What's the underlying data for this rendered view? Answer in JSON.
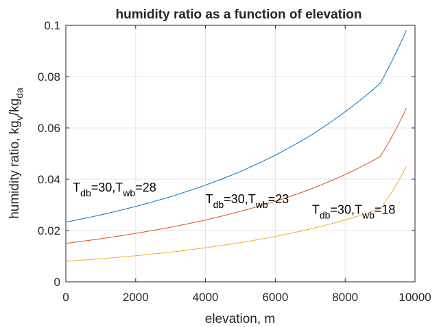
{
  "chart_data": {
    "type": "line",
    "title": "humidity ratio as a function of elevation",
    "xlabel": "elevation, m",
    "ylabel": {
      "main": "humidity ratio, kg",
      "sub1": "v",
      "mid": "/kg",
      "sub2": "da"
    },
    "xlim": [
      0,
      10000
    ],
    "ylim": [
      0,
      0.1
    ],
    "xticks": [
      0,
      2000,
      4000,
      6000,
      8000,
      10000
    ],
    "xtick_labels": [
      "0",
      "2000",
      "4000",
      "6000",
      "8000",
      "10000"
    ],
    "yticks": [
      0,
      0.02,
      0.04,
      0.06,
      0.08,
      0.1
    ],
    "ytick_labels": [
      "0",
      "0.02",
      "0.04",
      "0.06",
      "0.08",
      "0.1"
    ],
    "grid": true,
    "x": [
      0,
      1000,
      2000,
      3000,
      4000,
      5000,
      6000,
      7000,
      8000,
      9000,
      9750
    ],
    "series": [
      {
        "color": "#0072BD",
        "values": [
          0.0233,
          0.0261,
          0.0294,
          0.0332,
          0.0377,
          0.043,
          0.0494,
          0.057,
          0.0663,
          0.0773,
          0.098
        ]
      },
      {
        "color": "#D95319",
        "values": [
          0.015,
          0.0168,
          0.0189,
          0.0213,
          0.0241,
          0.0275,
          0.0314,
          0.0361,
          0.0418,
          0.0488,
          0.0677
        ]
      },
      {
        "color": "#EDB120",
        "values": [
          0.008,
          0.009,
          0.0102,
          0.0116,
          0.0133,
          0.0153,
          0.0177,
          0.0206,
          0.0241,
          0.0285,
          0.045
        ]
      }
    ],
    "annotations": [
      {
        "x": 200,
        "y": 0.0352,
        "text": {
          "t1": "T",
          "s1": "db",
          "t2": "=30,T",
          "s2": "wb",
          "t3": "=28"
        }
      },
      {
        "x": 4000,
        "y": 0.0307,
        "text": {
          "t1": "T",
          "s1": "db",
          "t2": "=30,T",
          "s2": "wb",
          "t3": "=23"
        }
      },
      {
        "x": 7050,
        "y": 0.0265,
        "text": {
          "t1": "T",
          "s1": "db",
          "t2": "=30,T",
          "s2": "wb",
          "t3": "=18"
        }
      }
    ]
  }
}
